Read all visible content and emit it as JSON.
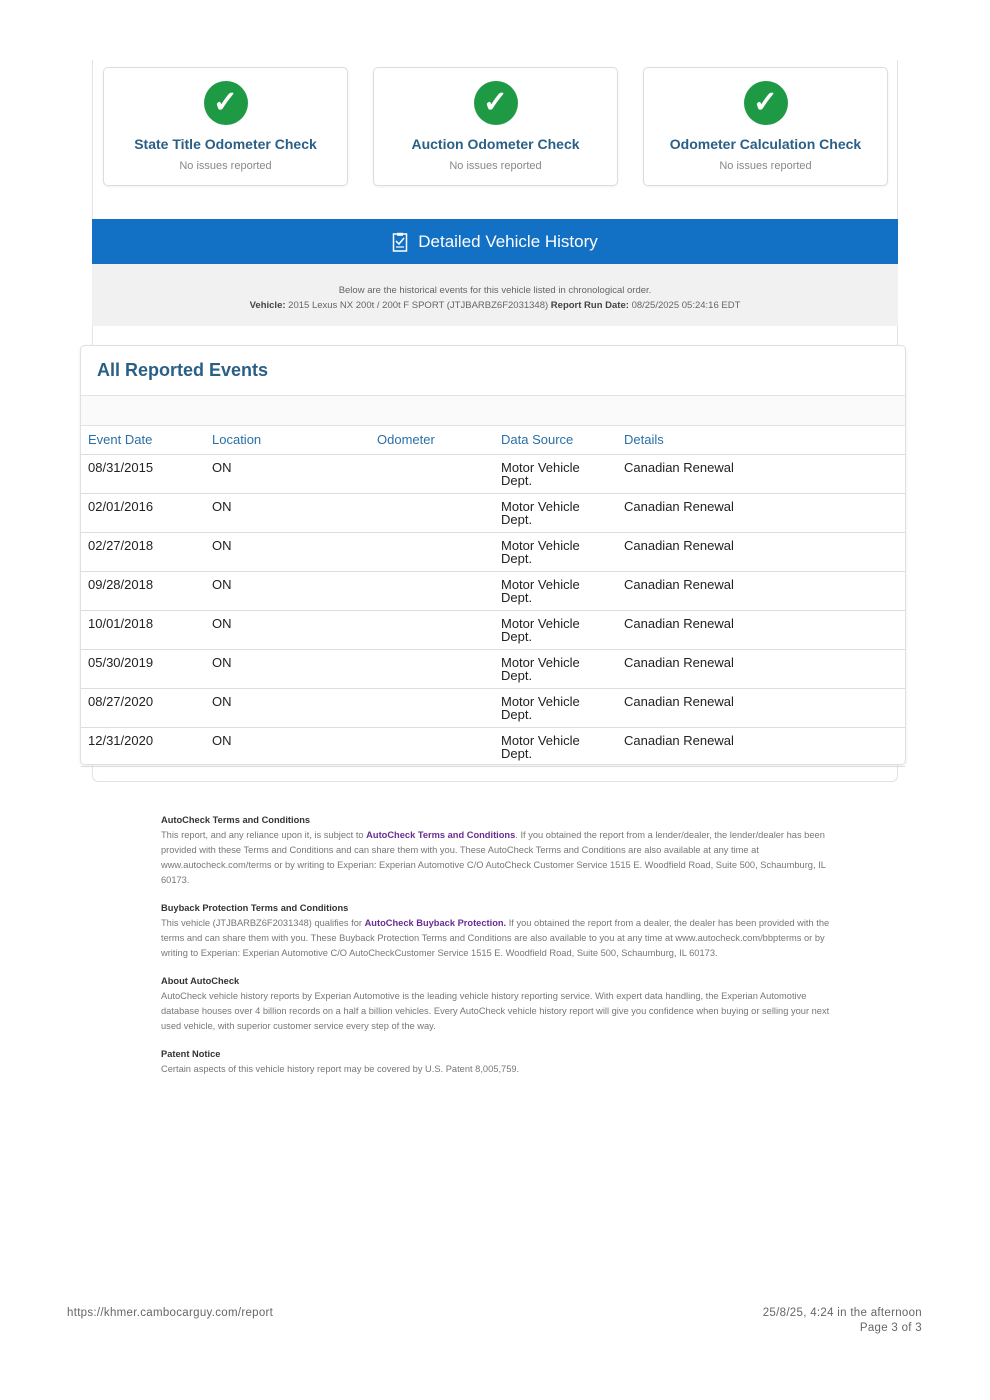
{
  "checks": [
    {
      "title": "State Title Odometer Check",
      "status": "No issues reported",
      "icon": "check-circle-icon"
    },
    {
      "title": "Auction Odometer Check",
      "status": "No issues reported",
      "icon": "check-circle-icon"
    },
    {
      "title": "Odometer Calculation Check",
      "status": "No issues reported",
      "icon": "check-circle-icon"
    }
  ],
  "history": {
    "title": "Detailed Vehicle History",
    "intro": "Below are the historical events for this vehicle listed in chronological order.",
    "vehicle_label": "Vehicle:",
    "vehicle": "2015 Lexus NX 200t / 200t F SPORT (JTJBARBZ6F2031348)",
    "run_label": "Report Run Date:",
    "run_date": "08/25/2025 05:24:16 EDT"
  },
  "events": {
    "title": "All Reported Events",
    "columns": [
      "Event Date",
      "Location",
      "Odometer",
      "Data Source",
      "Details"
    ],
    "rows": [
      [
        "08/31/2015",
        "ON",
        "",
        "Motor Vehicle Dept.",
        "Canadian Renewal"
      ],
      [
        "02/01/2016",
        "ON",
        "",
        "Motor Vehicle Dept.",
        "Canadian Renewal"
      ],
      [
        "02/27/2018",
        "ON",
        "",
        "Motor Vehicle Dept.",
        "Canadian Renewal"
      ],
      [
        "09/28/2018",
        "ON",
        "",
        "Motor Vehicle Dept.",
        "Canadian Renewal"
      ],
      [
        "10/01/2018",
        "ON",
        "",
        "Motor Vehicle Dept.",
        "Canadian Renewal"
      ],
      [
        "05/30/2019",
        "ON",
        "",
        "Motor Vehicle Dept.",
        "Canadian Renewal"
      ],
      [
        "08/27/2020",
        "ON",
        "",
        "Motor Vehicle Dept.",
        "Canadian Renewal"
      ],
      [
        "12/31/2020",
        "ON",
        "",
        "Motor Vehicle Dept.",
        "Canadian Renewal"
      ]
    ]
  },
  "terms": {
    "t1_title": "AutoCheck Terms and Conditions",
    "t1_a": "This report, and any reliance upon it, is subject to ",
    "t1_link": "AutoCheck Terms and Conditions",
    "t1_b": ". If you obtained the report from a lender/dealer, the lender/dealer has been provided with these Terms and Conditions and can share them with you. These AutoCheck Terms and Conditions are also available at any time at www.autocheck.com/terms or by writing to Experian: Experian Automotive C/O AutoCheck Customer Service 1515 E. Woodfield Road, Suite 500, Schaumburg, IL 60173.",
    "t2_title": "Buyback Protection Terms and Conditions",
    "t2_a": "This vehicle (JTJBARBZ6F2031348) qualifies for ",
    "t2_link": "AutoCheck Buyback Protection.",
    "t2_b": " If you obtained the report from a dealer, the dealer has been provided with the terms and can share them with you. These Buyback Protection Terms and Conditions are also available to you at any time at www.autocheck.com/bbpterms or by writing to Experian: Experian Automotive C/O AutoCheckCustomer Service 1515 E. Woodfield Road, Suite 500, Schaumburg, IL 60173.",
    "t3_title": "About AutoCheck",
    "t3": "AutoCheck vehicle history reports by Experian Automotive is the leading vehicle history reporting service. With expert data handling, the Experian Automotive database houses over 4 billion records on a half a billion vehicles. Every AutoCheck vehicle history report will give you confidence when buying or selling your next used vehicle, with superior customer service every step of the way.",
    "t4_title": "Patent Notice",
    "t4": "Certain aspects of this vehicle history report may be covered by U.S. Patent 8,005,759."
  },
  "footer": {
    "url": "https://khmer.cambocarguy.com/report",
    "datetime": "25/8/25, 4:24 in the afternoon",
    "page": "Page 3 of 3"
  },
  "colors": {
    "accent": "#1271c4",
    "success": "#1e9a44",
    "heading": "#2a5f86",
    "link": "#6a2c91"
  }
}
